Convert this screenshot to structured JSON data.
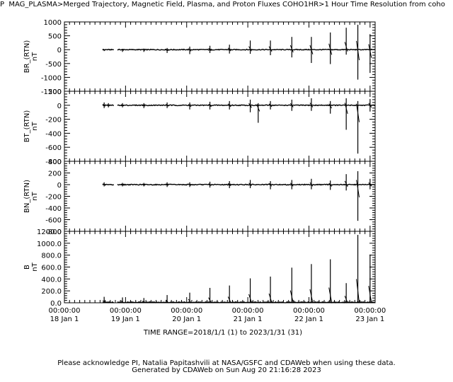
{
  "header": {
    "prefix": "P",
    "title": "MAG_PLASMA>Merged Trajectory, Magnetic Field, Plasma, and Proton Fluxes  COHO1HR>1 Hour Time Resolution from coho"
  },
  "time_range_label": "TIME RANGE=2018/1/1 (1) to 2023/1/31 (31)",
  "footer": {
    "line1": "Please acknowledge PI, Natalia Papitashvili at NASA/GSFC and CDAWeb when using these data.",
    "line2": "Generated by CDAWeb on Sun Aug 20 21:16:28 2023"
  },
  "chart_data": {
    "type": "line",
    "x_ticks": [
      {
        "time": "00:00:00",
        "date": "18 Jan  1"
      },
      {
        "time": "00:00:00",
        "date": "19 Jan  1"
      },
      {
        "time": "00:00:00",
        "date": "20 Jan  1"
      },
      {
        "time": "00:00:00",
        "date": "21 Jan  1"
      },
      {
        "time": "00:00:00",
        "date": "22 Jan  1"
      },
      {
        "time": "00:00:00",
        "date": "23 Jan  1"
      }
    ],
    "xlim": [
      2018.0,
      2023.083
    ],
    "data_start": 2018.86,
    "panels": [
      {
        "ylabel": "BR_(RTN)",
        "unit": "nT",
        "ylim": [
          -1500,
          1000
        ],
        "yticks": [
          -1500,
          -1000,
          -500,
          0,
          500,
          1000
        ],
        "ytick_labels": [
          "-1500",
          "-1000",
          "-500",
          "0",
          "500",
          "1000"
        ],
        "segments": [
          [
            2018.62,
            2018.82
          ]
        ],
        "spikes": [
          {
            "x": 2018.65,
            "max": 10,
            "min": -50
          },
          {
            "x": 2018.95,
            "max": 30,
            "min": -80
          },
          {
            "x": 2019.3,
            "max": 40,
            "min": -80
          },
          {
            "x": 2019.68,
            "max": 60,
            "min": -120
          },
          {
            "x": 2020.05,
            "max": 110,
            "min": -160
          },
          {
            "x": 2020.38,
            "max": 140,
            "min": -120
          },
          {
            "x": 2020.7,
            "max": 180,
            "min": -140
          },
          {
            "x": 2021.04,
            "max": 330,
            "min": -150
          },
          {
            "x": 2021.37,
            "max": 330,
            "min": -200
          },
          {
            "x": 2021.72,
            "max": 460,
            "min": -280
          },
          {
            "x": 2022.04,
            "max": 460,
            "min": -480
          },
          {
            "x": 2022.35,
            "max": 620,
            "min": -520
          },
          {
            "x": 2022.61,
            "max": 790,
            "min": -180
          },
          {
            "x": 2022.8,
            "max": 900,
            "min": -1080
          },
          {
            "x": 2023.0,
            "max": 560,
            "min": -840
          }
        ]
      },
      {
        "ylabel": "BT_(RTN)",
        "unit": "nT",
        "ylim": [
          -800,
          200
        ],
        "yticks": [
          -800,
          -600,
          -400,
          -200,
          0,
          200
        ],
        "ytick_labels": [
          "-800",
          "-600",
          "-400",
          "-200",
          "0",
          "200"
        ],
        "segments": [
          [
            2018.62,
            2018.82
          ]
        ],
        "spikes": [
          {
            "x": 2018.65,
            "max": 40,
            "min": -40
          },
          {
            "x": 2018.72,
            "max": 30,
            "min": -30
          },
          {
            "x": 2018.95,
            "max": 30,
            "min": -30
          },
          {
            "x": 2019.3,
            "max": 30,
            "min": -40
          },
          {
            "x": 2019.68,
            "max": 40,
            "min": -40
          },
          {
            "x": 2020.05,
            "max": 40,
            "min": -60
          },
          {
            "x": 2020.38,
            "max": 50,
            "min": -60
          },
          {
            "x": 2020.7,
            "max": 60,
            "min": -60
          },
          {
            "x": 2021.04,
            "max": 80,
            "min": -100
          },
          {
            "x": 2021.17,
            "max": 30,
            "min": -250
          },
          {
            "x": 2021.37,
            "max": 60,
            "min": -60
          },
          {
            "x": 2021.72,
            "max": 80,
            "min": -80
          },
          {
            "x": 2022.04,
            "max": 100,
            "min": -80
          },
          {
            "x": 2022.35,
            "max": 60,
            "min": -120
          },
          {
            "x": 2022.61,
            "max": 100,
            "min": -350
          },
          {
            "x": 2022.8,
            "max": 60,
            "min": -690
          },
          {
            "x": 2023.0,
            "max": 90,
            "min": -90
          }
        ]
      },
      {
        "ylabel": "BN_(RTN)",
        "unit": "nT",
        "ylim": [
          -800,
          400
        ],
        "yticks": [
          -800,
          -600,
          -400,
          -200,
          0,
          200,
          400
        ],
        "ytick_labels": [
          "-800",
          "-600",
          "-400",
          "-200",
          "0",
          "200",
          "400"
        ],
        "segments": [
          [
            2018.62,
            2018.82
          ]
        ],
        "spikes": [
          {
            "x": 2018.65,
            "max": 40,
            "min": -30
          },
          {
            "x": 2018.95,
            "max": 30,
            "min": -30
          },
          {
            "x": 2019.3,
            "max": 30,
            "min": -30
          },
          {
            "x": 2019.68,
            "max": 40,
            "min": -40
          },
          {
            "x": 2020.05,
            "max": 40,
            "min": -40
          },
          {
            "x": 2020.38,
            "max": 50,
            "min": -50
          },
          {
            "x": 2020.7,
            "max": 60,
            "min": -60
          },
          {
            "x": 2021.04,
            "max": 80,
            "min": -60
          },
          {
            "x": 2021.37,
            "max": 60,
            "min": -80
          },
          {
            "x": 2021.72,
            "max": 80,
            "min": -80
          },
          {
            "x": 2022.04,
            "max": 100,
            "min": -80
          },
          {
            "x": 2022.35,
            "max": 70,
            "min": -90
          },
          {
            "x": 2022.61,
            "max": 180,
            "min": -100
          },
          {
            "x": 2022.8,
            "max": 230,
            "min": -620
          },
          {
            "x": 2023.0,
            "max": 100,
            "min": -80
          }
        ]
      },
      {
        "ylabel": "B",
        "unit": "nT",
        "ylim": [
          0,
          1200
        ],
        "yticks": [
          0,
          200,
          400,
          600,
          800,
          1000,
          1200
        ],
        "ytick_labels": [
          "0.0",
          "200.0",
          "400.0",
          "600.0",
          "800.0",
          "1000.0",
          "1200.0"
        ],
        "segments": [
          [
            2018.62,
            2018.82
          ]
        ],
        "spikes": [
          {
            "x": 2018.65,
            "max": 100,
            "min": 0
          },
          {
            "x": 2018.95,
            "max": 90,
            "min": 0
          },
          {
            "x": 2019.3,
            "max": 80,
            "min": 0
          },
          {
            "x": 2019.68,
            "max": 130,
            "min": 0
          },
          {
            "x": 2020.05,
            "max": 170,
            "min": 0
          },
          {
            "x": 2020.38,
            "max": 250,
            "min": 0
          },
          {
            "x": 2020.7,
            "max": 290,
            "min": 0
          },
          {
            "x": 2021.04,
            "max": 410,
            "min": 0
          },
          {
            "x": 2021.37,
            "max": 440,
            "min": 0
          },
          {
            "x": 2021.72,
            "max": 590,
            "min": 0
          },
          {
            "x": 2022.04,
            "max": 650,
            "min": 0
          },
          {
            "x": 2022.35,
            "max": 730,
            "min": 0
          },
          {
            "x": 2022.61,
            "max": 330,
            "min": 0
          },
          {
            "x": 2022.8,
            "max": 1140,
            "min": 0
          },
          {
            "x": 2023.0,
            "max": 810,
            "min": 0
          }
        ]
      }
    ]
  }
}
